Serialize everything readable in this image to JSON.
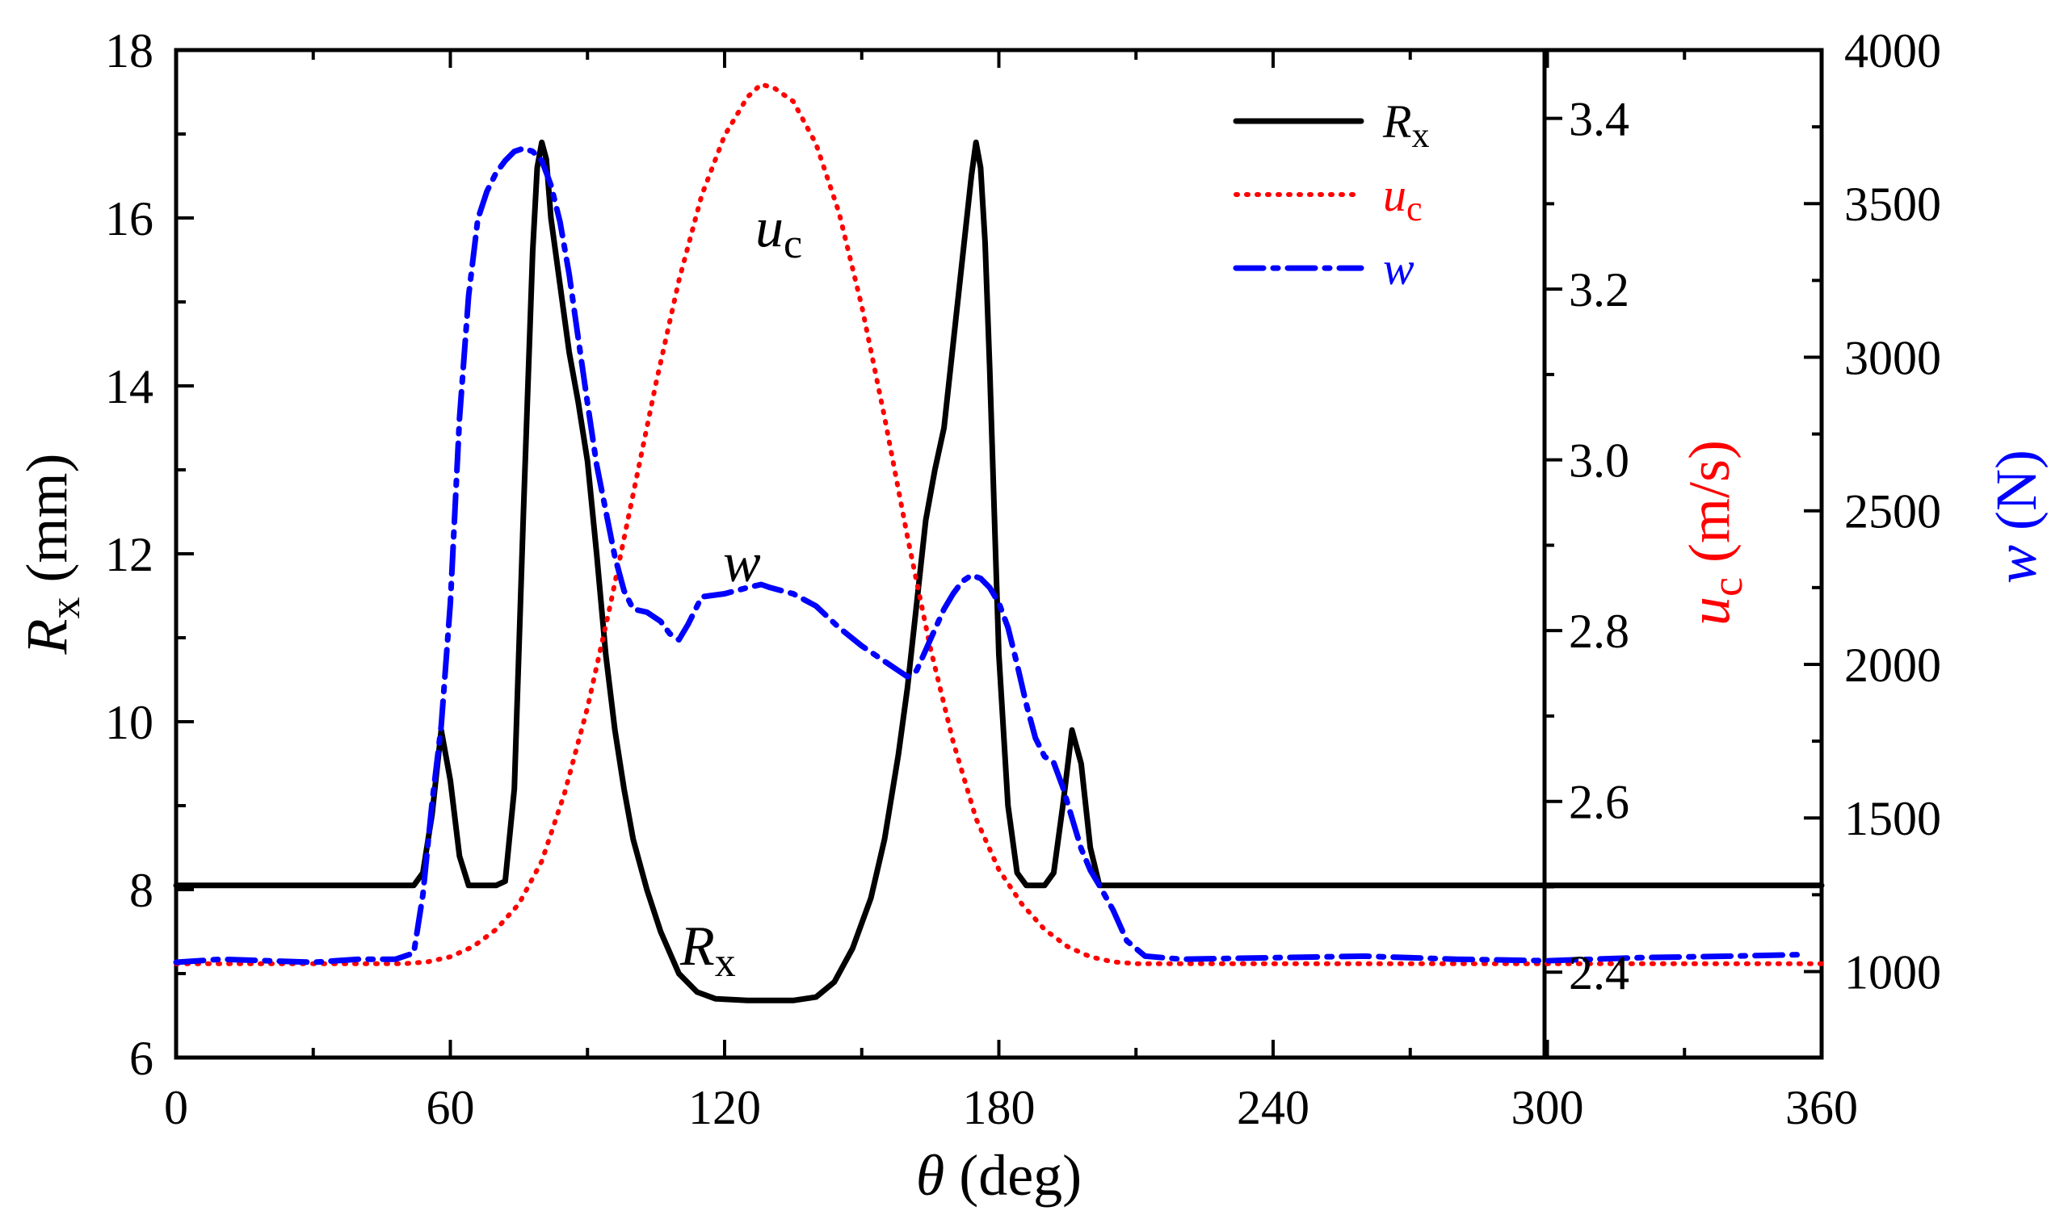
{
  "chart_data": {
    "type": "line",
    "xlabel": {
      "symbol": "θ",
      "unit": "(deg)"
    },
    "x_ticks": [
      "0",
      "60",
      "120",
      "180",
      "240",
      "300",
      "360"
    ],
    "xlim": [
      0,
      360
    ],
    "axes": {
      "left": {
        "label": {
          "symbol": "R",
          "sub": "x",
          "unit": " (mm)"
        },
        "ylim": [
          6,
          18
        ],
        "ticks": [
          "6",
          "8",
          "10",
          "12",
          "14",
          "16",
          "18"
        ],
        "color": "#000000"
      },
      "right1": {
        "label": {
          "symbol": "u",
          "sub": "c",
          "unit": " (m/s)"
        },
        "ylim": [
          2.3,
          3.48
        ],
        "ticks": [
          "2.4",
          "2.6",
          "2.8",
          "3.0",
          "3.2",
          "3.4"
        ],
        "color": "#ff0000"
      },
      "right2": {
        "label": {
          "symbol": "w",
          "unit": " (N)"
        },
        "ylim": [
          720,
          4000
        ],
        "ticks": [
          "1000",
          "1500",
          "2000",
          "2500",
          "3000",
          "3500",
          "4000"
        ],
        "color": "#0000ff"
      }
    },
    "series": [
      {
        "name": "Rx",
        "legend_symbol": "R",
        "legend_sub": "x",
        "axis": "left",
        "color": "#000000",
        "style": "solid",
        "points": [
          [
            0,
            8.05
          ],
          [
            52,
            8.05
          ],
          [
            54,
            8.2
          ],
          [
            56,
            8.9
          ],
          [
            58,
            9.9
          ],
          [
            60,
            9.3
          ],
          [
            62,
            8.4
          ],
          [
            64,
            8.05
          ],
          [
            70,
            8.05
          ],
          [
            72,
            8.1
          ],
          [
            74,
            9.2
          ],
          [
            76,
            12.5
          ],
          [
            78,
            15.6
          ],
          [
            79,
            16.6
          ],
          [
            80,
            16.9
          ],
          [
            81,
            16.7
          ],
          [
            82,
            16.0
          ],
          [
            84,
            15.2
          ],
          [
            86,
            14.4
          ],
          [
            88,
            13.8
          ],
          [
            90,
            13.1
          ],
          [
            92,
            12.0
          ],
          [
            94,
            10.8
          ],
          [
            96,
            9.9
          ],
          [
            98,
            9.2
          ],
          [
            100,
            8.6
          ],
          [
            103,
            8.0
          ],
          [
            106,
            7.5
          ],
          [
            110,
            7.0
          ],
          [
            114,
            6.78
          ],
          [
            118,
            6.7
          ],
          [
            125,
            6.68
          ],
          [
            135,
            6.68
          ],
          [
            140,
            6.72
          ],
          [
            144,
            6.9
          ],
          [
            148,
            7.3
          ],
          [
            152,
            7.9
          ],
          [
            155,
            8.6
          ],
          [
            158,
            9.6
          ],
          [
            160,
            10.4
          ],
          [
            162,
            11.4
          ],
          [
            164,
            12.4
          ],
          [
            166,
            13.0
          ],
          [
            168,
            13.5
          ],
          [
            170,
            14.5
          ],
          [
            172,
            15.5
          ],
          [
            174,
            16.5
          ],
          [
            175,
            16.9
          ],
          [
            176,
            16.6
          ],
          [
            177,
            15.7
          ],
          [
            178,
            14.2
          ],
          [
            179,
            12.5
          ],
          [
            180,
            10.8
          ],
          [
            182,
            9.0
          ],
          [
            184,
            8.2
          ],
          [
            186,
            8.05
          ],
          [
            190,
            8.05
          ],
          [
            192,
            8.2
          ],
          [
            194,
            9.0
          ],
          [
            196,
            9.9
          ],
          [
            198,
            9.5
          ],
          [
            200,
            8.5
          ],
          [
            202,
            8.05
          ],
          [
            360,
            8.05
          ]
        ]
      },
      {
        "name": "uc",
        "legend_symbol": "u",
        "legend_sub": "c",
        "axis": "right1",
        "color": "#ff0000",
        "style": "dotted",
        "points": [
          [
            0,
            2.41
          ],
          [
            50,
            2.41
          ],
          [
            55,
            2.412
          ],
          [
            60,
            2.418
          ],
          [
            65,
            2.43
          ],
          [
            70,
            2.45
          ],
          [
            75,
            2.48
          ],
          [
            80,
            2.53
          ],
          [
            85,
            2.61
          ],
          [
            90,
            2.71
          ],
          [
            95,
            2.83
          ],
          [
            100,
            2.96
          ],
          [
            105,
            3.09
          ],
          [
            110,
            3.21
          ],
          [
            115,
            3.31
          ],
          [
            120,
            3.38
          ],
          [
            125,
            3.425
          ],
          [
            128,
            3.44
          ],
          [
            131,
            3.435
          ],
          [
            135,
            3.42
          ],
          [
            140,
            3.37
          ],
          [
            145,
            3.29
          ],
          [
            150,
            3.18
          ],
          [
            155,
            3.05
          ],
          [
            160,
            2.91
          ],
          [
            165,
            2.78
          ],
          [
            170,
            2.67
          ],
          [
            175,
            2.58
          ],
          [
            180,
            2.52
          ],
          [
            185,
            2.48
          ],
          [
            190,
            2.45
          ],
          [
            195,
            2.43
          ],
          [
            200,
            2.418
          ],
          [
            205,
            2.412
          ],
          [
            210,
            2.41
          ],
          [
            360,
            2.41
          ]
        ]
      },
      {
        "name": "w",
        "legend_symbol": "w",
        "axis": "right2",
        "color": "#0000ff",
        "style": "dashdot",
        "points": [
          [
            0,
            1030
          ],
          [
            10,
            1040
          ],
          [
            20,
            1035
          ],
          [
            30,
            1030
          ],
          [
            40,
            1040
          ],
          [
            48,
            1040
          ],
          [
            52,
            1060
          ],
          [
            54,
            1250
          ],
          [
            56,
            1550
          ],
          [
            58,
            1800
          ],
          [
            60,
            2200
          ],
          [
            62,
            2800
          ],
          [
            64,
            3200
          ],
          [
            66,
            3450
          ],
          [
            68,
            3540
          ],
          [
            70,
            3600
          ],
          [
            72,
            3640
          ],
          [
            74,
            3670
          ],
          [
            76,
            3680
          ],
          [
            78,
            3670
          ],
          [
            80,
            3640
          ],
          [
            82,
            3560
          ],
          [
            84,
            3440
          ],
          [
            86,
            3270
          ],
          [
            88,
            3060
          ],
          [
            90,
            2850
          ],
          [
            92,
            2650
          ],
          [
            94,
            2500
          ],
          [
            96,
            2350
          ],
          [
            98,
            2240
          ],
          [
            100,
            2180
          ],
          [
            103,
            2170
          ],
          [
            106,
            2140
          ],
          [
            108,
            2100
          ],
          [
            110,
            2080
          ],
          [
            112,
            2130
          ],
          [
            115,
            2220
          ],
          [
            120,
            2230
          ],
          [
            125,
            2250
          ],
          [
            128,
            2260
          ],
          [
            130,
            2250
          ],
          [
            135,
            2230
          ],
          [
            140,
            2190
          ],
          [
            145,
            2120
          ],
          [
            150,
            2060
          ],
          [
            155,
            2010
          ],
          [
            158,
            1980
          ],
          [
            160,
            1960
          ],
          [
            162,
            1980
          ],
          [
            165,
            2080
          ],
          [
            168,
            2180
          ],
          [
            170,
            2230
          ],
          [
            172,
            2270
          ],
          [
            174,
            2290
          ],
          [
            176,
            2280
          ],
          [
            178,
            2250
          ],
          [
            180,
            2200
          ],
          [
            182,
            2120
          ],
          [
            184,
            2000
          ],
          [
            186,
            1870
          ],
          [
            188,
            1760
          ],
          [
            190,
            1700
          ],
          [
            192,
            1680
          ],
          [
            194,
            1600
          ],
          [
            196,
            1500
          ],
          [
            198,
            1400
          ],
          [
            200,
            1330
          ],
          [
            202,
            1280
          ],
          [
            205,
            1200
          ],
          [
            208,
            1100
          ],
          [
            212,
            1050
          ],
          [
            220,
            1040
          ],
          [
            240,
            1045
          ],
          [
            260,
            1050
          ],
          [
            280,
            1040
          ],
          [
            300,
            1035
          ],
          [
            320,
            1045
          ],
          [
            340,
            1050
          ],
          [
            356,
            1055
          ]
        ]
      }
    ],
    "legend": {
      "placement": "top-right",
      "entries": [
        "Rx",
        "uc",
        "w"
      ]
    },
    "annotations": [
      {
        "symbol": "u",
        "sub": "c",
        "series": "uc"
      },
      {
        "symbol": "w",
        "series": "w"
      },
      {
        "symbol": "R",
        "sub": "x",
        "series": "Rx"
      }
    ]
  }
}
